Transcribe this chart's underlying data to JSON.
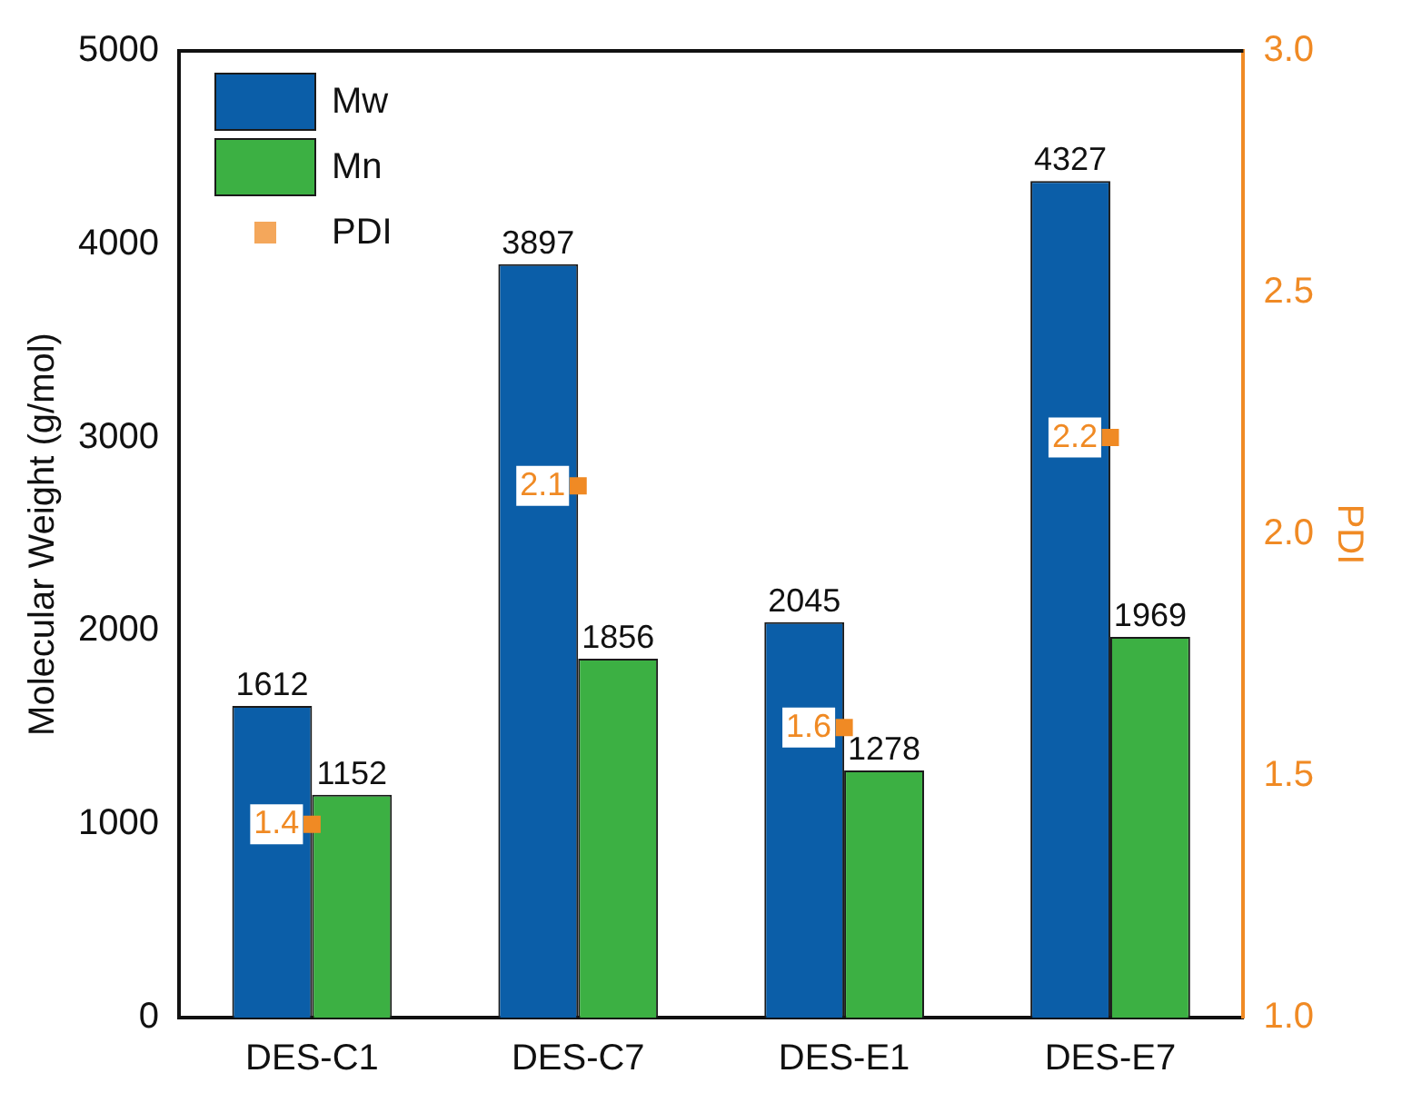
{
  "chart_data": {
    "type": "bar",
    "ylabel": "Molecular Weight (g/mol)",
    "y2label": "PDI",
    "categories": [
      "DES-C1",
      "DES-C7",
      "DES-E1",
      "DES-E7"
    ],
    "series": [
      {
        "name": "Mw",
        "type": "bar",
        "color": "#0b5ea8",
        "values": [
          1612,
          3897,
          2045,
          4327
        ]
      },
      {
        "name": "Mn",
        "type": "bar",
        "color": "#3cb043",
        "values": [
          1152,
          1856,
          1278,
          1969
        ]
      },
      {
        "name": "PDI",
        "type": "scatter",
        "axis": "y2",
        "color": "#f08a24",
        "x": [
          "DES-C1",
          "DES-C7",
          "DES-E1",
          "DES-E7"
        ],
        "values": [
          1.4,
          2.1,
          1.6,
          2.2
        ]
      }
    ],
    "ylim": [
      0,
      5000
    ],
    "yticks": [
      0,
      1000,
      2000,
      3000,
      4000,
      5000
    ],
    "y2lim": [
      1,
      3
    ],
    "y2ticks": [
      {
        "value": 1,
        "label": "1.0"
      },
      1.5,
      {
        "value": 2,
        "label": "2.0"
      },
      2.5,
      {
        "value": 3,
        "label": "3.0"
      }
    ],
    "data_labels": true,
    "legend": "top left",
    "grid": false,
    "marker": "square"
  }
}
